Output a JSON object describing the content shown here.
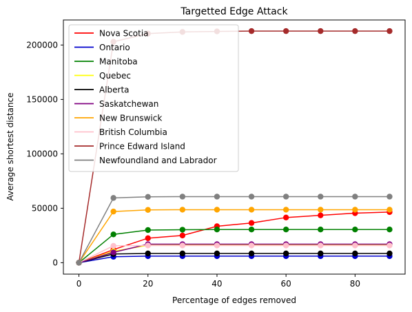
{
  "chart_data": {
    "type": "line",
    "title": "Targetted Edge Attack",
    "xlabel": "Percentage of edges removed",
    "ylabel": "Average shortest distance",
    "xlim": [
      -4.5,
      94.5
    ],
    "ylim": [
      -10500,
      223000
    ],
    "x_ticks": [
      0,
      20,
      40,
      60,
      80
    ],
    "y_ticks": [
      0,
      50000,
      100000,
      150000,
      200000
    ],
    "grid": false,
    "legend_position": "top-left",
    "x": [
      0,
      10,
      20,
      30,
      40,
      50,
      60,
      70,
      80,
      90
    ],
    "series": [
      {
        "name": "Nova Scotia",
        "color": "#ff0000",
        "values": [
          0,
          12000,
          22500,
          25000,
          33500,
          36500,
          41500,
          43500,
          45500,
          46500
        ]
      },
      {
        "name": "Ontario",
        "color": "#0000cd",
        "values": [
          0,
          5500,
          6000,
          6000,
          6000,
          6000,
          6000,
          6000,
          6000,
          6000
        ]
      },
      {
        "name": "Manitoba",
        "color": "#008000",
        "values": [
          0,
          26000,
          30000,
          30300,
          30500,
          30500,
          30500,
          30500,
          30500,
          30500
        ]
      },
      {
        "name": "Quebec",
        "color": "#ffff00",
        "values": [
          0,
          10500,
          16000,
          16200,
          16200,
          16200,
          16200,
          16200,
          16200,
          16200
        ]
      },
      {
        "name": "Alberta",
        "color": "#000000",
        "values": [
          0,
          8000,
          8500,
          8500,
          8500,
          8500,
          8500,
          8500,
          8500,
          8500
        ]
      },
      {
        "name": "Saskatchewan",
        "color": "#800080",
        "values": [
          0,
          9500,
          17000,
          17000,
          17000,
          17000,
          17000,
          17000,
          17000,
          17000
        ]
      },
      {
        "name": "New Brunswick",
        "color": "#ffa500",
        "values": [
          0,
          47000,
          48500,
          48700,
          48700,
          48700,
          48700,
          48700,
          48700,
          48700
        ]
      },
      {
        "name": "British Columbia",
        "color": "#ffc0cb",
        "values": [
          0,
          15500,
          15800,
          15800,
          15800,
          15800,
          15800,
          15800,
          15800,
          15800
        ]
      },
      {
        "name": "Prince Edward Island",
        "color": "#a52a2a",
        "values": [
          0,
          203000,
          210500,
          212000,
          212500,
          212800,
          212800,
          212800,
          212800,
          212800
        ]
      },
      {
        "name": "Newfoundland and Labrador",
        "color": "#808080",
        "values": [
          0,
          59500,
          60500,
          60700,
          60700,
          60700,
          60700,
          60700,
          60700,
          60700
        ]
      }
    ],
    "draw_order": [
      8,
      0,
      1,
      2,
      3,
      4,
      5,
      6,
      7,
      9
    ]
  }
}
